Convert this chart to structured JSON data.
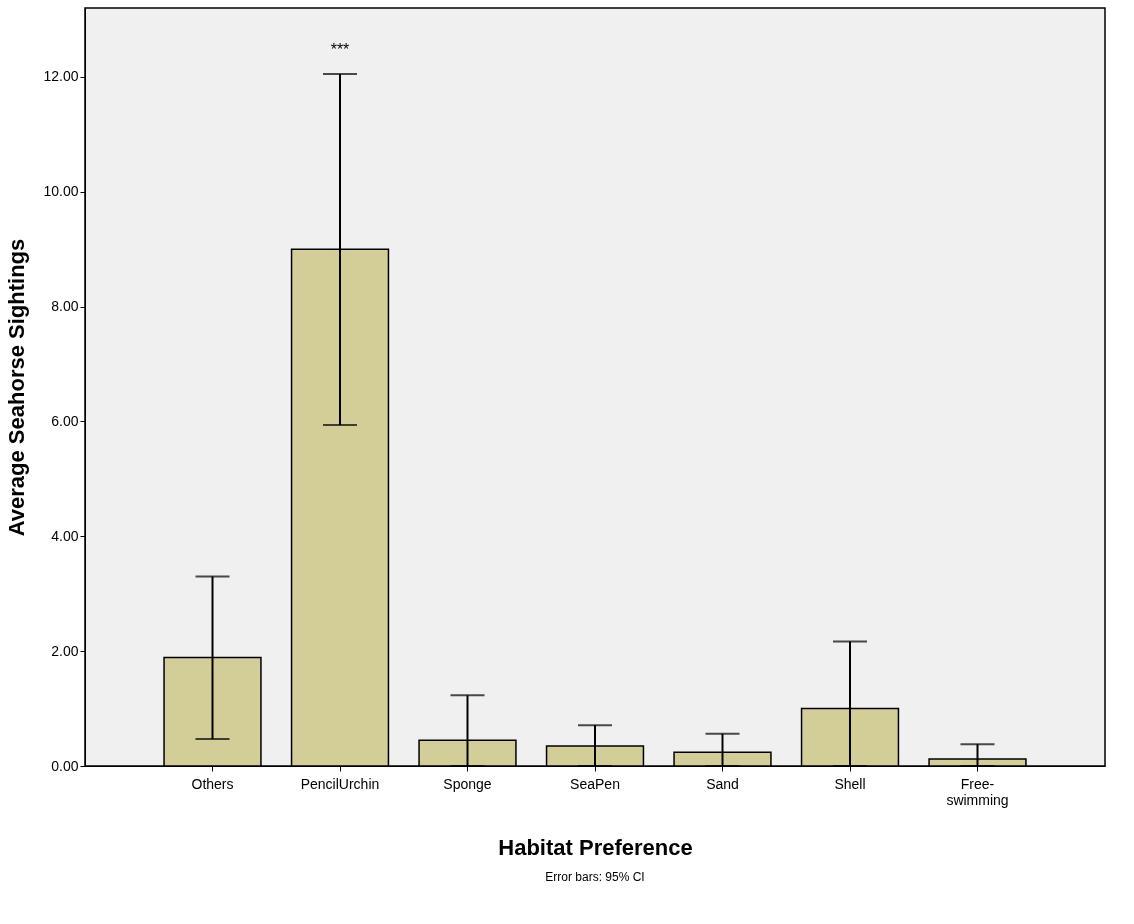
{
  "chart_data": {
    "type": "bar",
    "xlabel": "Habitat Preference",
    "ylabel": "Average Seahorse Sightings",
    "categories": [
      "Others",
      "PencilUrchin",
      "Sponge",
      "SeaPen",
      "Sand",
      "Shell",
      "Free-swimming"
    ],
    "values": [
      1.89,
      9.0,
      0.45,
      0.35,
      0.24,
      1.0,
      0.12
    ],
    "errors": [
      [
        0.47,
        3.3
      ],
      [
        5.94,
        12.05
      ],
      [
        0,
        1.23
      ],
      [
        0,
        0.71
      ],
      [
        0,
        0.56
      ],
      [
        0,
        2.17
      ],
      [
        0,
        0.38
      ]
    ],
    "color": "#d3ce97",
    "ylim": [
      0,
      13.2
    ],
    "yticks": [
      {
        "value": 0,
        "label": "0.00"
      },
      {
        "value": 2,
        "label": "2.00"
      },
      {
        "value": 4,
        "label": "4.00"
      },
      {
        "value": 6,
        "label": "6.00"
      },
      {
        "value": 8,
        "label": "8.00"
      },
      {
        "value": 10,
        "label": "10.00"
      },
      {
        "value": 12,
        "label": "12.00"
      }
    ],
    "grid": false,
    "annotations": [
      "***",
      "Error bars: 95% CI"
    ]
  }
}
